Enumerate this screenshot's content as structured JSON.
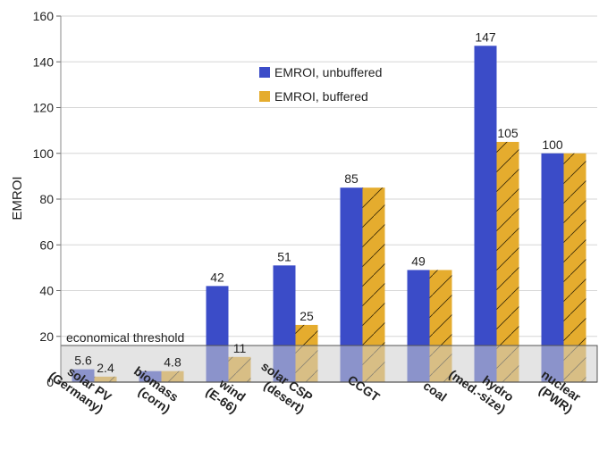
{
  "chart_data": {
    "type": "bar",
    "ylabel": "EMROI",
    "ylim": [
      0,
      160
    ],
    "yticks": [
      0,
      20,
      40,
      60,
      80,
      100,
      120,
      140,
      160
    ],
    "grid": "horizontal",
    "legend_position": "top-center",
    "categories": [
      [
        "solar PV",
        "(Germany)"
      ],
      [
        "biomass",
        "(corn)"
      ],
      [
        "wind",
        "(E-66)"
      ],
      [
        "solar CSP",
        "(desert)"
      ],
      [
        "CCGT"
      ],
      [
        "coal"
      ],
      [
        "hydro",
        "(med.-size)"
      ],
      [
        "nuclear",
        "(PWR)"
      ]
    ],
    "series": [
      {
        "name": "EMROI, unbuffered",
        "color": "#3b4cc8",
        "hatched": false,
        "values": [
          5.6,
          4.8,
          42,
          51,
          85,
          49,
          147,
          100
        ],
        "labels": [
          "5.6",
          "",
          "42",
          "51",
          "85",
          "49",
          "147",
          "100"
        ]
      },
      {
        "name": "EMROI, buffered",
        "color": "#e5ac2e",
        "hatched": true,
        "values": [
          2.4,
          4.8,
          11,
          25,
          85,
          49,
          105,
          100
        ],
        "labels": [
          "2.4",
          "4.8",
          "11",
          "25",
          "",
          "",
          "105",
          ""
        ]
      }
    ],
    "threshold": {
      "label": "economical threshold",
      "value": 16
    }
  }
}
